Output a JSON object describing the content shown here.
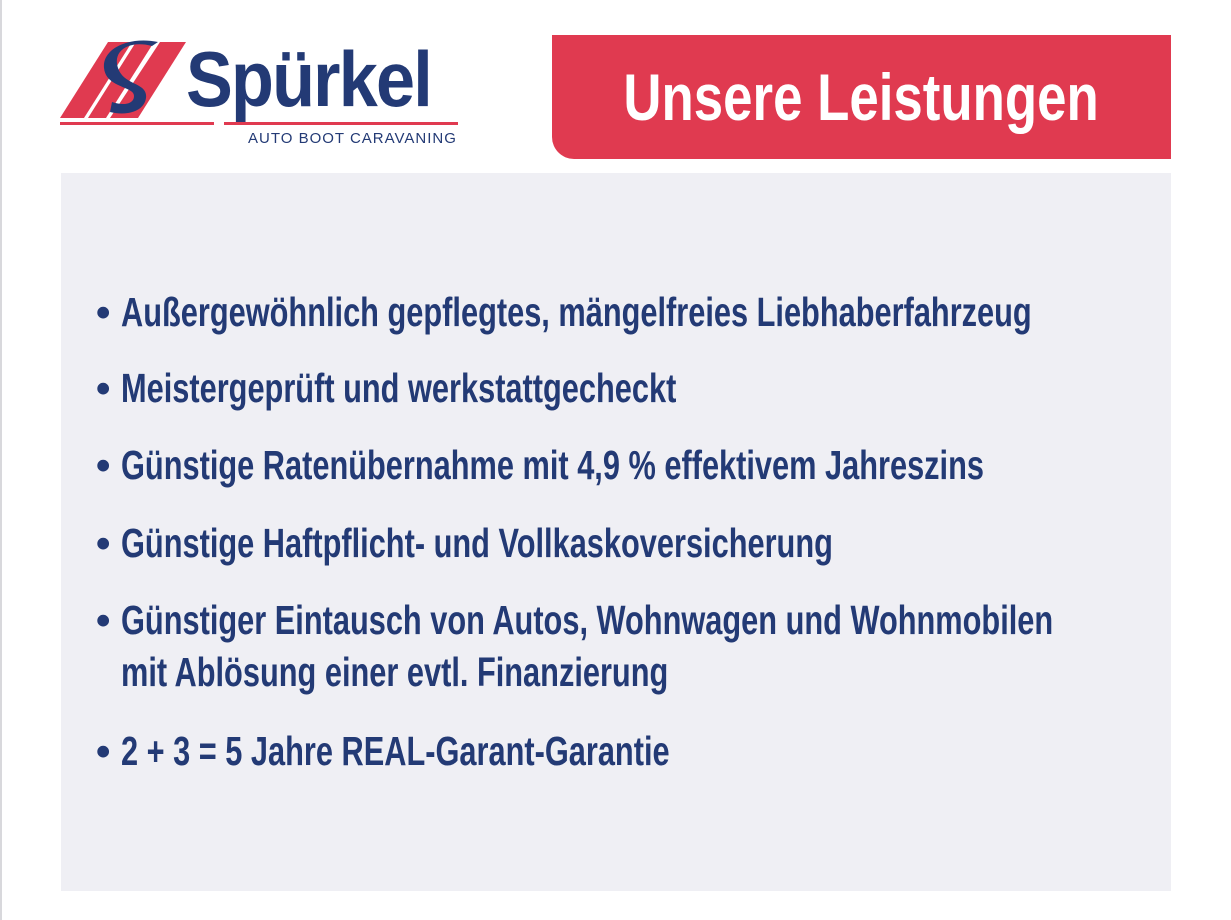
{
  "brand": {
    "name": "Spürkel",
    "tagline": "AUTO BOOT CARAVANING",
    "colors": {
      "navy": "#233a75",
      "red": "#e03a50"
    }
  },
  "header": {
    "title": "Unsere Leistungen"
  },
  "services": {
    "items": [
      {
        "line1": "Außergewöhnlich gepflegtes, mängelfreies Liebhaberfahrzeug"
      },
      {
        "line1": "Meistergeprüft und werkstattgecheckt"
      },
      {
        "line1": "Günstige Ratenübernahme mit 4,9 % effektivem Jahreszins"
      },
      {
        "line1": "Günstige Haftpflicht- und Vollkaskoversicherung"
      },
      {
        "line1": "Günstiger Eintausch von Autos, Wohnwagen und Wohnmobilen",
        "line2": "mit Ablösung einer evtl. Finanzierung"
      },
      {
        "line1": "2 + 3 = 5 Jahre REAL-Garant-Garantie"
      }
    ]
  }
}
